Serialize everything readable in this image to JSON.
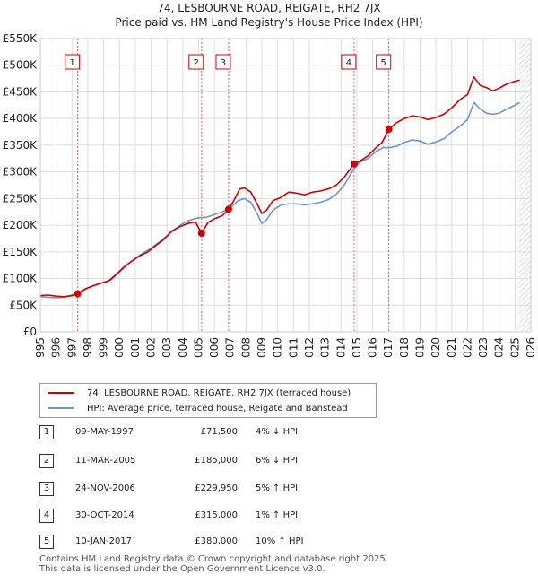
{
  "header": {
    "title_line1": "74, LESBOURNE ROAD, REIGATE, RH2 7JX",
    "title_line2": "Price paid vs. HM Land Registry's House Price Index (HPI)"
  },
  "colors": {
    "price_line": "#cc0000",
    "hpi_line": "#6a96c8",
    "marker_line": "#e06070",
    "grid": "#dddddd",
    "hatch": "#aaaaaa"
  },
  "chart_data": {
    "type": "line",
    "x_range": [
      1995,
      2026
    ],
    "ylim": [
      0,
      550000
    ],
    "yticks": [
      0,
      50000,
      100000,
      150000,
      200000,
      250000,
      300000,
      350000,
      400000,
      450000,
      500000,
      550000
    ],
    "ytick_labels": [
      "£0",
      "£50K",
      "£100K",
      "£150K",
      "£200K",
      "£250K",
      "£300K",
      "£350K",
      "£400K",
      "£450K",
      "£500K",
      "£550K"
    ],
    "xtick_labels": [
      "1995",
      "1996",
      "1997",
      "1998",
      "1999",
      "2000",
      "2001",
      "2002",
      "2003",
      "2004",
      "2005",
      "2006",
      "2007",
      "2008",
      "2009",
      "2010",
      "2011",
      "2012",
      "2013",
      "2014",
      "2015",
      "2016",
      "2017",
      "2018",
      "2019",
      "2020",
      "2021",
      "2022",
      "2023",
      "2024",
      "2025",
      "2026"
    ],
    "hatch_from": 2025.25,
    "series": [
      {
        "name": "74, LESBOURNE ROAD, REIGATE, RH2 7JX (terraced house)",
        "x": [
          1995.0,
          1995.5,
          1996.0,
          1996.5,
          1997.0,
          1997.36,
          1997.8,
          1998.3,
          1998.8,
          1999.3,
          1999.8,
          2000.3,
          2000.8,
          2001.3,
          2001.8,
          2002.3,
          2002.8,
          2003.3,
          2003.8,
          2004.3,
          2004.8,
          2005.19,
          2005.6,
          2006.0,
          2006.5,
          2006.9,
          2007.3,
          2007.6,
          2007.9,
          2008.3,
          2008.7,
          2009.0,
          2009.3,
          2009.7,
          2010.2,
          2010.7,
          2011.2,
          2011.7,
          2012.2,
          2012.7,
          2013.2,
          2013.7,
          2014.2,
          2014.83,
          2015.2,
          2015.7,
          2016.2,
          2016.6,
          2017.03,
          2017.5,
          2018.0,
          2018.5,
          2019.0,
          2019.5,
          2020.0,
          2020.5,
          2021.0,
          2021.5,
          2022.0,
          2022.4,
          2022.8,
          2023.2,
          2023.6,
          2024.0,
          2024.5,
          2025.0,
          2025.3
        ],
        "values": [
          68000,
          69000,
          67000,
          66000,
          68000,
          71500,
          80000,
          86000,
          91000,
          95000,
          108000,
          122000,
          133000,
          143000,
          150000,
          162000,
          173000,
          189000,
          197000,
          203000,
          206000,
          185000,
          205000,
          212000,
          218000,
          229950,
          250000,
          268000,
          270000,
          262000,
          240000,
          222000,
          228000,
          246000,
          252000,
          262000,
          260000,
          257000,
          262000,
          264000,
          268000,
          275000,
          290000,
          315000,
          320000,
          330000,
          345000,
          355000,
          380000,
          392000,
          400000,
          405000,
          403000,
          398000,
          402000,
          408000,
          420000,
          435000,
          445000,
          478000,
          462000,
          458000,
          452000,
          457000,
          465000,
          470000,
          472000
        ]
      },
      {
        "name": "HPI: Average price, terraced house, Reigate and Banstead",
        "x": [
          1995.0,
          1995.5,
          1996.0,
          1996.5,
          1997.0,
          1997.5,
          1998.0,
          1998.5,
          1999.0,
          1999.5,
          2000.0,
          2000.5,
          2001.0,
          2001.5,
          2002.0,
          2002.5,
          2003.0,
          2003.5,
          2004.0,
          2004.5,
          2005.0,
          2005.5,
          2006.0,
          2006.5,
          2007.0,
          2007.5,
          2007.9,
          2008.3,
          2008.7,
          2009.0,
          2009.3,
          2009.7,
          2010.2,
          2010.7,
          2011.2,
          2011.7,
          2012.2,
          2012.7,
          2013.2,
          2013.7,
          2014.2,
          2014.8,
          2015.2,
          2015.7,
          2016.2,
          2016.7,
          2017.0,
          2017.5,
          2018.0,
          2018.5,
          2019.0,
          2019.5,
          2020.0,
          2020.5,
          2021.0,
          2021.5,
          2022.0,
          2022.4,
          2022.8,
          2023.2,
          2023.6,
          2024.0,
          2024.5,
          2025.0,
          2025.3
        ],
        "values": [
          66000,
          65000,
          64000,
          65000,
          69000,
          74000,
          82000,
          88000,
          93000,
          98000,
          112000,
          126000,
          138000,
          148000,
          157000,
          168000,
          180000,
          192000,
          203000,
          210000,
          214000,
          215000,
          220000,
          225000,
          232000,
          246000,
          250000,
          243000,
          222000,
          203000,
          210000,
          228000,
          238000,
          240000,
          240000,
          238000,
          240000,
          243000,
          248000,
          258000,
          275000,
          305000,
          318000,
          325000,
          338000,
          346000,
          345000,
          348000,
          355000,
          360000,
          358000,
          352000,
          356000,
          362000,
          375000,
          385000,
          398000,
          430000,
          418000,
          410000,
          408000,
          410000,
          418000,
          425000,
          430000
        ]
      }
    ],
    "sales": [
      {
        "num": "1",
        "x": 1997.36,
        "price": 71500
      },
      {
        "num": "2",
        "x": 2005.19,
        "price": 185000
      },
      {
        "num": "3",
        "x": 2006.9,
        "price": 229950
      },
      {
        "num": "4",
        "x": 2014.83,
        "price": 315000
      },
      {
        "num": "5",
        "x": 2017.03,
        "price": 380000
      }
    ]
  },
  "legend": {
    "price_label": "74, LESBOURNE ROAD, REIGATE, RH2 7JX (terraced house)",
    "hpi_label": "HPI: Average price, terraced house, Reigate and Banstead"
  },
  "transactions": [
    {
      "num": "1",
      "date": "09-MAY-1997",
      "price": "£71,500",
      "hpi": "4% ↓ HPI"
    },
    {
      "num": "2",
      "date": "11-MAR-2005",
      "price": "£185,000",
      "hpi": "6% ↓ HPI"
    },
    {
      "num": "3",
      "date": "24-NOV-2006",
      "price": "£229,950",
      "hpi": "5% ↑ HPI"
    },
    {
      "num": "4",
      "date": "30-OCT-2014",
      "price": "£315,000",
      "hpi": "1% ↑ HPI"
    },
    {
      "num": "5",
      "date": "10-JAN-2017",
      "price": "£380,000",
      "hpi": "10% ↑ HPI"
    }
  ],
  "footer": {
    "line1": "Contains HM Land Registry data © Crown copyright and database right 2025.",
    "line2": "This data is licensed under the Open Government Licence v3.0."
  }
}
